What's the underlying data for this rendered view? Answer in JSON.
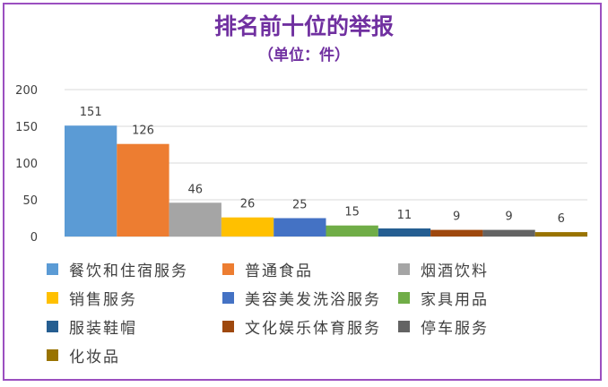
{
  "title": "排名前十位的举报",
  "subtitle": "（单位：件）",
  "chart_data": {
    "type": "bar",
    "title": "排名前十位的举报",
    "subtitle": "（单位：件）",
    "categories": [
      "餐饮和住宿服务",
      "普通食品",
      "烟酒饮料",
      "销售服务",
      "美容美发洗浴服务",
      "家具用品",
      "服装鞋帽",
      "文化娱乐体育服务",
      "停车服务",
      "化妆品"
    ],
    "values": [
      151,
      126,
      46,
      26,
      25,
      15,
      11,
      9,
      9,
      6
    ],
    "colors": [
      "#5b9bd5",
      "#ed7d31",
      "#a5a5a5",
      "#ffc000",
      "#4472c4",
      "#70ad47",
      "#255e91",
      "#9e480e",
      "#636363",
      "#997300"
    ],
    "ylim": [
      0,
      200
    ],
    "yticks": [
      "0",
      "50",
      "100",
      "150",
      "200"
    ],
    "grid": true,
    "legend_position": "bottom",
    "data_labels": [
      "151",
      "126",
      "46",
      "26",
      "25",
      "15",
      "11",
      "9",
      "9",
      "6"
    ]
  }
}
